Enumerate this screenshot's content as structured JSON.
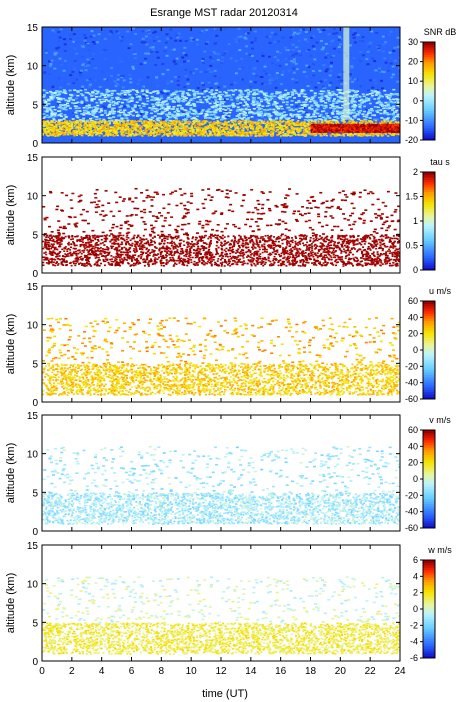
{
  "figure": {
    "title": "Esrange MST radar 20120314",
    "xlabel": "time (UT)",
    "x_ticks": [
      "0",
      "2",
      "4",
      "6",
      "8",
      "10",
      "12",
      "14",
      "16",
      "18",
      "20",
      "22",
      "24"
    ]
  },
  "chart_data": [
    {
      "type": "heatmap",
      "ylabel": "altitude (km)",
      "xlim": [
        0,
        24
      ],
      "ylim": [
        0,
        15
      ],
      "y_ticks": [
        "0",
        "5",
        "10",
        "15"
      ],
      "colorbar": {
        "label": "SNR dB",
        "range": [
          -20,
          30
        ],
        "ticks": [
          "30",
          "20",
          "10",
          "0",
          "-10",
          "-20"
        ],
        "levels": [
          -20,
          -10,
          0,
          10,
          20,
          30
        ]
      },
      "features": [
        {
          "kind": "layer",
          "t": [
            0,
            24
          ],
          "alt": [
            1.0,
            3.0
          ],
          "value": 15
        },
        {
          "kind": "layer",
          "t": [
            18,
            24
          ],
          "alt": [
            1.5,
            2.5
          ],
          "value": 28
        },
        {
          "kind": "band",
          "t": [
            0,
            24
          ],
          "alt": [
            3.0,
            7.0
          ],
          "value": 0
        },
        {
          "kind": "spike",
          "t": [
            20.2,
            20.6
          ],
          "alt": [
            3.0,
            15.0
          ],
          "value": 5
        }
      ]
    },
    {
      "type": "heatmap",
      "ylabel": "altitude (km)",
      "xlim": [
        0,
        24
      ],
      "ylim": [
        0,
        15
      ],
      "y_ticks": [
        "0",
        "5",
        "10",
        "15"
      ],
      "colorbar": {
        "label": "tau s",
        "range": [
          0,
          2
        ],
        "ticks": [
          "2",
          "1.5",
          "1",
          "0.5",
          "0"
        ],
        "levels": [
          0,
          0.5,
          1,
          1.5,
          2
        ]
      },
      "features": [
        {
          "kind": "layer",
          "t": [
            0,
            24
          ],
          "alt": [
            1.0,
            5.0
          ],
          "value": 2.0
        },
        {
          "kind": "sparse",
          "t": [
            0,
            24
          ],
          "alt": [
            5.0,
            11.0
          ],
          "value": 2.0
        }
      ]
    },
    {
      "type": "heatmap",
      "ylabel": "altitude (km)",
      "xlim": [
        0,
        24
      ],
      "ylim": [
        0,
        15
      ],
      "y_ticks": [
        "0",
        "5",
        "10",
        "15"
      ],
      "colorbar": {
        "label": "u m/s",
        "range": [
          -60,
          60
        ],
        "ticks": [
          "60",
          "40",
          "20",
          "0",
          "-20",
          "-40",
          "-60"
        ],
        "levels": [
          -60,
          -40,
          -20,
          0,
          20,
          40,
          60
        ]
      },
      "features": [
        {
          "kind": "layer",
          "t": [
            0,
            24
          ],
          "alt": [
            1.0,
            5.0
          ],
          "value": 25
        },
        {
          "kind": "sparse",
          "t": [
            0,
            24
          ],
          "alt": [
            5.0,
            11.0
          ],
          "value": 30
        }
      ]
    },
    {
      "type": "heatmap",
      "ylabel": "altitude (km)",
      "xlim": [
        0,
        24
      ],
      "ylim": [
        0,
        15
      ],
      "y_ticks": [
        "0",
        "5",
        "10",
        "15"
      ],
      "colorbar": {
        "label": "v m/s",
        "range": [
          -60,
          60
        ],
        "ticks": [
          "60",
          "40",
          "20",
          "0",
          "-20",
          "-40",
          "-60"
        ],
        "levels": [
          -60,
          -40,
          -20,
          0,
          20,
          40,
          60
        ]
      },
      "features": [
        {
          "kind": "layer",
          "t": [
            0,
            24
          ],
          "alt": [
            1.0,
            5.0
          ],
          "value": -10
        },
        {
          "kind": "sparse",
          "t": [
            0,
            24
          ],
          "alt": [
            5.0,
            11.0
          ],
          "value": -10
        }
      ]
    },
    {
      "type": "heatmap",
      "ylabel": "altitude (km)",
      "xlim": [
        0,
        24
      ],
      "ylim": [
        0,
        15
      ],
      "y_ticks": [
        "0",
        "5",
        "10",
        "15"
      ],
      "colorbar": {
        "label": "w m/s",
        "range": [
          -6,
          6
        ],
        "ticks": [
          "6",
          "4",
          "2",
          "0",
          "-2",
          "-4",
          "-6"
        ],
        "levels": [
          -6,
          -4,
          -2,
          0,
          2,
          4,
          6
        ]
      },
      "features": [
        {
          "kind": "layer",
          "t": [
            0,
            24
          ],
          "alt": [
            1.0,
            5.0
          ],
          "value": 1.5
        },
        {
          "kind": "sparse",
          "t": [
            0,
            24
          ],
          "alt": [
            5.0,
            11.0
          ],
          "value": 0
        }
      ]
    }
  ]
}
